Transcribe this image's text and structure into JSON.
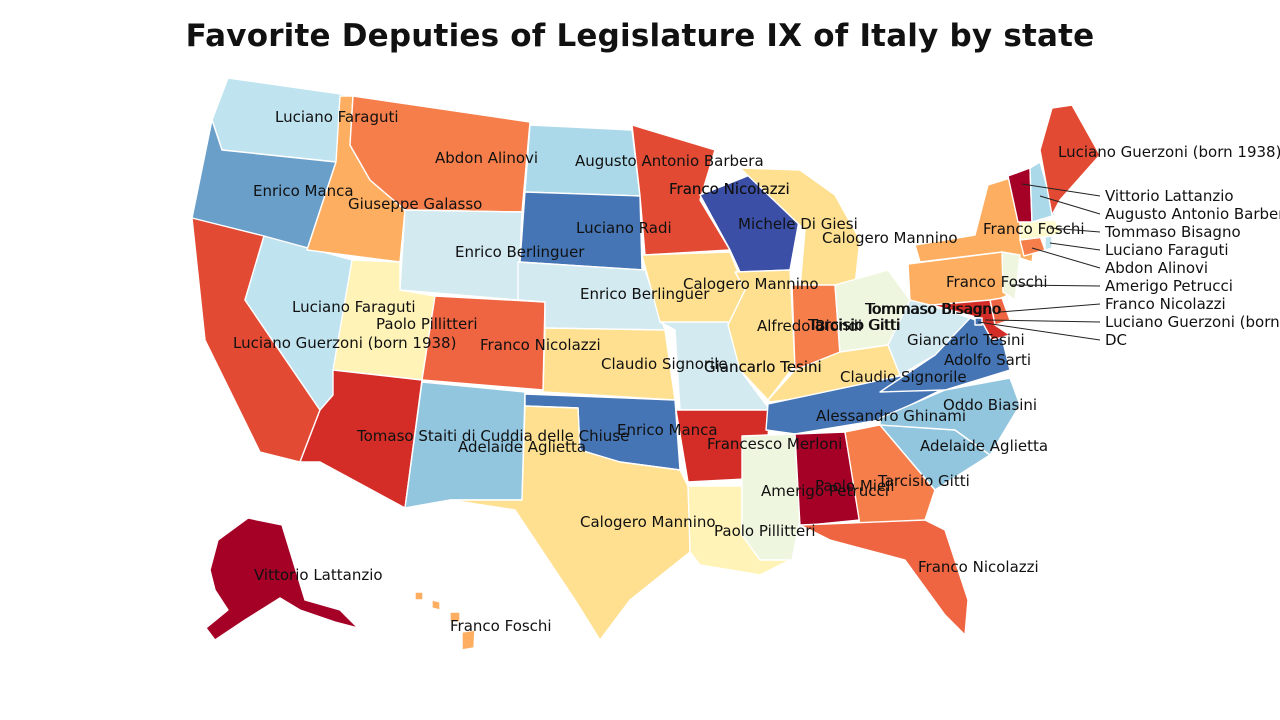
{
  "title": "Favorite Deputies of Legislature IX of Italy by state",
  "colors": {
    "dark_red": "#a50026",
    "red": "#d42d27",
    "red_orange": "#e34a33",
    "orange_red": "#ef6441",
    "orange": "#f67e4b",
    "light_orange": "#fdae61",
    "peach": "#fcc27a",
    "light_yellow": "#fee090",
    "pale_yellow": "#fff3b8",
    "cream": "#fffbd0",
    "pale_green": "#eef6e0",
    "pale_blue": "#d2eaf0",
    "light_blue": "#bfe3ef",
    "sky_blue": "#abd9e9",
    "medium_blue": "#92c5de",
    "blue": "#74add1",
    "steel_blue": "#6a9fca",
    "dark_blue": "#4575b4",
    "navy": "#3a4fa5"
  },
  "states": [
    {
      "abbr": "WA",
      "color_key": "light_blue",
      "label": "Luciano Faraguti"
    },
    {
      "abbr": "OR",
      "color_key": "steel_blue",
      "label": "Enrico Manca"
    },
    {
      "abbr": "CA",
      "color_key": "red_orange",
      "label": "Luciano Guerzoni (born 1938)"
    },
    {
      "abbr": "NV",
      "color_key": "light_blue",
      "label": "Luciano Faraguti"
    },
    {
      "abbr": "ID",
      "color_key": "light_orange",
      "label": "Giuseppe Galasso"
    },
    {
      "abbr": "MT",
      "color_key": "orange",
      "label": "Abdon Alinovi"
    },
    {
      "abbr": "WY",
      "color_key": "pale_blue",
      "label": "Enrico Berlinguer"
    },
    {
      "abbr": "UT",
      "color_key": "pale_yellow",
      "label": "Paolo Pillitteri"
    },
    {
      "abbr": "AZ",
      "color_key": "red",
      "label": "Tomaso Staiti di Cuddia delle Chiuse"
    },
    {
      "abbr": "CO",
      "color_key": "orange_red",
      "label": "Franco Nicolazzi"
    },
    {
      "abbr": "NM",
      "color_key": "medium_blue",
      "label": "Adelaide Aglietta"
    },
    {
      "abbr": "ND",
      "color_key": "sky_blue",
      "label": "Augusto Antonio Barbera"
    },
    {
      "abbr": "SD",
      "color_key": "dark_blue",
      "label": "Luciano Radi"
    },
    {
      "abbr": "NE",
      "color_key": "pale_blue",
      "label": "Enrico Berlinguer"
    },
    {
      "abbr": "KS",
      "color_key": "light_yellow",
      "label": "Claudio Signorile"
    },
    {
      "abbr": "OK",
      "color_key": "dark_blue",
      "label": "Enrico Manca"
    },
    {
      "abbr": "TX",
      "color_key": "light_yellow",
      "label": "Calogero Mannino"
    },
    {
      "abbr": "MN",
      "color_key": "red_orange",
      "label": "Franco Nicolazzi"
    },
    {
      "abbr": "IA",
      "color_key": "light_yellow",
      "label": "Calogero Mannino"
    },
    {
      "abbr": "MO",
      "color_key": "pale_blue",
      "label": "Giancarlo Tesini"
    },
    {
      "abbr": "AR",
      "color_key": "red",
      "label": "Francesco Merloni"
    },
    {
      "abbr": "LA",
      "color_key": "pale_yellow",
      "label": "Paolo Pillitteri"
    },
    {
      "abbr": "WI",
      "color_key": "navy",
      "label": "Michele Di Giesi"
    },
    {
      "abbr": "IL",
      "color_key": "light_yellow",
      "label": "Alfredo Biondi"
    },
    {
      "abbr": "MI",
      "color_key": "light_yellow",
      "label": "Calogero Mannino"
    },
    {
      "abbr": "IN",
      "color_key": "orange",
      "label": "Tarcisio Gitti"
    },
    {
      "abbr": "OH",
      "color_key": "pale_green",
      "label": "Tommaso Bisagno"
    },
    {
      "abbr": "KY",
      "color_key": "light_yellow",
      "label": "Claudio Signorile"
    },
    {
      "abbr": "TN",
      "color_key": "dark_blue",
      "label": "Alessandro Ghinami"
    },
    {
      "abbr": "MS",
      "color_key": "pale_green",
      "label": "Amerigo Petrucci"
    },
    {
      "abbr": "AL",
      "color_key": "dark_red",
      "label": "Paolo Mieli"
    },
    {
      "abbr": "GA",
      "color_key": "orange",
      "label": "Tarcisio Gitti"
    },
    {
      "abbr": "FL",
      "color_key": "orange_red",
      "label": "Franco Nicolazzi"
    },
    {
      "abbr": "SC",
      "color_key": "medium_blue",
      "label": "Adelaide Aglietta"
    },
    {
      "abbr": "NC",
      "color_key": "medium_blue",
      "label": "Oddo Biasini"
    },
    {
      "abbr": "VA",
      "color_key": "dark_blue",
      "label": "Adolfo Sarti"
    },
    {
      "abbr": "WV",
      "color_key": "pale_blue",
      "label": "Giancarlo Tesini"
    },
    {
      "abbr": "PA",
      "color_key": "light_orange",
      "label": "Franco Foschi"
    },
    {
      "abbr": "NY",
      "color_key": "light_orange",
      "label": "Franco Foschi"
    },
    {
      "abbr": "ME",
      "color_key": "red_orange",
      "label": "Luciano Guerzoni (born 1938)"
    },
    {
      "abbr": "AK",
      "color_key": "dark_red",
      "label": "Vittorio Lattanzio"
    },
    {
      "abbr": "HI",
      "color_key": "light_orange",
      "label": "Franco Foschi"
    }
  ],
  "extra_labels": [
    {
      "label": "Tommaso Bisagno"
    },
    {
      "label": "Giancarlo Tesini"
    },
    {
      "label": "Franco Nicolazzi"
    },
    {
      "label": "Tarcisio Gitti"
    }
  ],
  "callouts": [
    {
      "abbr": "VT",
      "color_key": "dark_red",
      "label": "Vittorio Lattanzio"
    },
    {
      "abbr": "NH",
      "color_key": "sky_blue",
      "label": "Augusto Antonio Barbera"
    },
    {
      "abbr": "MA",
      "color_key": "cream",
      "label": "Tommaso Bisagno"
    },
    {
      "abbr": "RI",
      "color_key": "light_blue",
      "label": "Luciano Faraguti"
    },
    {
      "abbr": "CT",
      "color_key": "orange",
      "label": "Abdon Alinovi"
    },
    {
      "abbr": "NJ",
      "color_key": "pale_green",
      "label": "Amerigo Petrucci"
    },
    {
      "abbr": "DE",
      "color_key": "orange_red",
      "label": "Franco Nicolazzi"
    },
    {
      "abbr": "MD",
      "color_key": "red",
      "label": "Luciano Guerzoni (born 1938)"
    },
    {
      "abbr": "DC",
      "color_key": "dark_blue",
      "label": "DC"
    }
  ]
}
